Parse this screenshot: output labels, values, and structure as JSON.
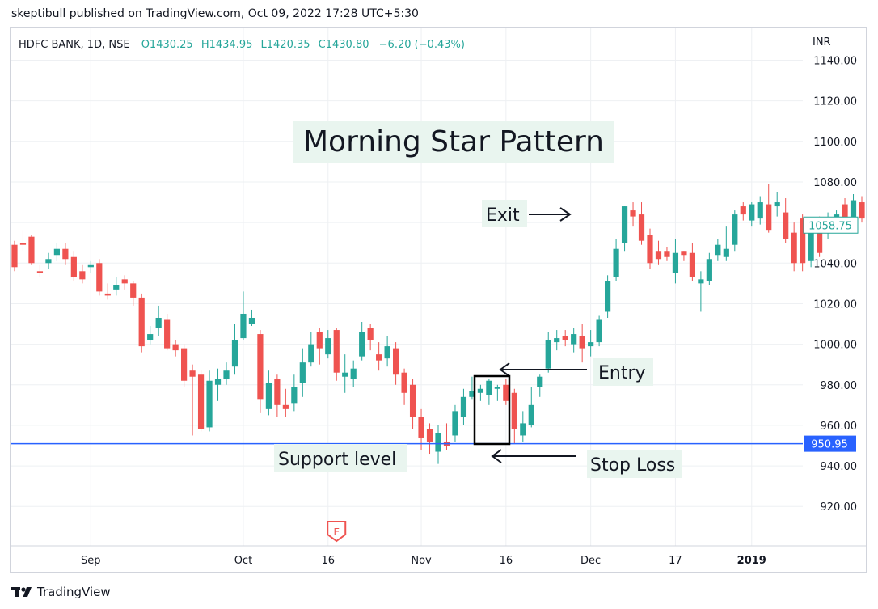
{
  "publisher_line": "skeptibull published on TradingView.com, Oct 09, 2022 17:28 UTC+5:30",
  "footer": {
    "brand": "TradingView"
  },
  "colors": {
    "up": "#26a69a",
    "down": "#ef5350",
    "support_line": "#2962ff",
    "label_bg": "#e9f5ef",
    "axis_text": "#131722",
    "grid": "#eef0f3"
  },
  "chart_data": {
    "type": "candlestick",
    "symbol_line": {
      "symbol": "HDFC BANK, 1D, NSE",
      "open": "O1430.25",
      "high": "H1434.95",
      "low": "L1420.35",
      "close": "C1430.80",
      "change": "−6.20 (−0.43%)"
    },
    "currency": "INR",
    "title": "Morning Star Pattern",
    "y_range": [
      907,
      1145
    ],
    "y_ticks": [
      "1140.00",
      "1120.00",
      "1100.00",
      "1080.00",
      "1060.00",
      "1040.00",
      "1020.00",
      "1000.00",
      "980.00",
      "960.00",
      "940.00",
      "920.00"
    ],
    "x_range": [
      0,
      97
    ],
    "x_ticks": [
      {
        "label": "Sep",
        "index": 9
      },
      {
        "label": "Oct",
        "index": 27
      },
      {
        "label": "16",
        "index": 37
      },
      {
        "label": "Nov",
        "index": 48
      },
      {
        "label": "16",
        "index": 58
      },
      {
        "label": "Dec",
        "index": 68
      },
      {
        "label": "17",
        "index": 78
      },
      {
        "label": "2019",
        "index": 87
      }
    ],
    "last_price": "1058.75",
    "support_price": "950.95",
    "support_level": 950.95,
    "earnings_marker": {
      "label": "E",
      "index": 38
    },
    "annotations": {
      "exit": "Exit",
      "entry": "Entry",
      "stop_loss": "Stop Loss",
      "support": "Support level"
    },
    "candles": [
      [
        1049,
        1038,
        1051,
        1036
      ],
      [
        1050,
        1049,
        1056,
        1046
      ],
      [
        1053,
        1040,
        1054,
        1039
      ],
      [
        1036,
        1035,
        1039,
        1033
      ],
      [
        1040,
        1042,
        1045,
        1037
      ],
      [
        1044,
        1047,
        1050,
        1041
      ],
      [
        1047,
        1042,
        1050,
        1039
      ],
      [
        1043,
        1033,
        1046,
        1031
      ],
      [
        1036,
        1032,
        1039,
        1030
      ],
      [
        1038,
        1039,
        1041,
        1035
      ],
      [
        1040,
        1026,
        1042,
        1024
      ],
      [
        1025,
        1024,
        1030,
        1022
      ],
      [
        1027,
        1029,
        1033,
        1024
      ],
      [
        1032,
        1030,
        1034,
        1027
      ],
      [
        1030,
        1023,
        1031,
        1019
      ],
      [
        1023,
        999,
        1025,
        996
      ],
      [
        1002,
        1005,
        1009,
        1000
      ],
      [
        1008,
        1013,
        1019,
        1004
      ],
      [
        1012,
        998,
        1015,
        997
      ],
      [
        1000,
        997,
        1002,
        994
      ],
      [
        998,
        982,
        1000,
        979
      ],
      [
        987,
        984,
        990,
        955
      ],
      [
        985,
        958,
        987,
        957
      ],
      [
        959,
        982,
        987,
        957
      ],
      [
        980,
        983,
        988,
        972
      ],
      [
        983,
        987,
        991,
        980
      ],
      [
        989,
        1002,
        1010,
        985
      ],
      [
        1003,
        1015,
        1026,
        1002
      ],
      [
        1010,
        1013,
        1017,
        1009
      ],
      [
        1005,
        973,
        1007,
        966
      ],
      [
        968,
        981,
        987,
        965
      ],
      [
        983,
        970,
        985,
        964
      ],
      [
        970,
        968,
        978,
        964
      ],
      [
        971,
        979,
        985,
        967
      ],
      [
        981,
        991,
        998,
        974
      ],
      [
        991,
        1000,
        1006,
        989
      ],
      [
        1006,
        998,
        1008,
        990
      ],
      [
        995,
        1003,
        1007,
        993
      ],
      [
        1007,
        986,
        1008,
        982
      ],
      [
        984,
        986,
        995,
        976
      ],
      [
        983,
        988,
        992,
        979
      ],
      [
        994,
        1006,
        1011,
        992
      ],
      [
        1008,
        1002,
        1010,
        997
      ],
      [
        995,
        992,
        1001,
        987
      ],
      [
        993,
        999,
        1004,
        989
      ],
      [
        998,
        985,
        1001,
        980
      ],
      [
        986,
        976,
        988,
        970
      ],
      [
        980,
        964,
        983,
        958
      ],
      [
        964,
        954,
        968,
        948
      ],
      [
        958,
        952,
        961,
        946
      ],
      [
        947,
        956,
        960,
        941
      ],
      [
        952,
        950,
        961,
        948
      ],
      [
        955,
        967,
        970,
        952
      ],
      [
        964,
        974,
        978,
        960
      ],
      [
        974,
        977,
        984,
        973
      ],
      [
        976,
        978,
        980,
        972
      ],
      [
        975,
        982,
        983,
        970
      ],
      [
        978,
        979,
        980,
        972
      ],
      [
        980,
        972,
        983,
        970
      ],
      [
        976,
        958,
        978,
        951
      ],
      [
        955,
        961,
        967,
        952
      ],
      [
        960,
        970,
        979,
        959
      ],
      [
        979,
        984,
        985,
        974
      ],
      [
        988,
        1002,
        1006,
        986
      ],
      [
        1001,
        1003,
        1007,
        997
      ],
      [
        1004,
        1002,
        1007,
        999
      ],
      [
        1000,
        1005,
        1008,
        996
      ],
      [
        1004,
        998,
        1010,
        991
      ],
      [
        999,
        1001,
        1007,
        994
      ],
      [
        1001,
        1012,
        1014,
        999
      ],
      [
        1016,
        1031,
        1034,
        1013
      ],
      [
        1033,
        1047,
        1052,
        1031
      ],
      [
        1050,
        1068,
        1068,
        1046
      ],
      [
        1066,
        1063,
        1070,
        1058
      ],
      [
        1064,
        1051,
        1070,
        1049
      ],
      [
        1054,
        1040,
        1057,
        1037
      ],
      [
        1046,
        1042,
        1051,
        1039
      ],
      [
        1046,
        1043,
        1048,
        1041
      ],
      [
        1035,
        1045,
        1052,
        1030
      ],
      [
        1046,
        1044,
        1046,
        1041
      ],
      [
        1045,
        1033,
        1050,
        1031
      ],
      [
        1030,
        1032,
        1036,
        1016
      ],
      [
        1031,
        1042,
        1045,
        1029
      ],
      [
        1044,
        1049,
        1052,
        1041
      ],
      [
        1043,
        1047,
        1058,
        1041
      ],
      [
        1049,
        1064,
        1066,
        1046
      ],
      [
        1068,
        1064,
        1070,
        1061
      ],
      [
        1061,
        1069,
        1070,
        1058
      ],
      [
        1062,
        1070,
        1073,
        1059
      ],
      [
        1069,
        1056,
        1079,
        1055
      ],
      [
        1068,
        1070,
        1075,
        1063
      ],
      [
        1065,
        1052,
        1072,
        1050
      ],
      [
        1055,
        1040,
        1060,
        1036
      ],
      [
        1062,
        1040,
        1064,
        1036
      ],
      [
        1041,
        1057,
        1061,
        1038
      ],
      [
        1058,
        1045,
        1063,
        1043
      ],
      [
        1056,
        1061,
        1065,
        1052
      ],
      [
        1061,
        1064,
        1066,
        1060
      ],
      [
        1069,
        1058,
        1072,
        1056
      ],
      [
        1062,
        1071,
        1074,
        1056
      ],
      [
        1070,
        1062,
        1073,
        1060
      ],
      [
        1060,
        1055,
        1069,
        1047
      ],
      [
        1061,
        1058,
        1060,
        1056
      ]
    ]
  }
}
